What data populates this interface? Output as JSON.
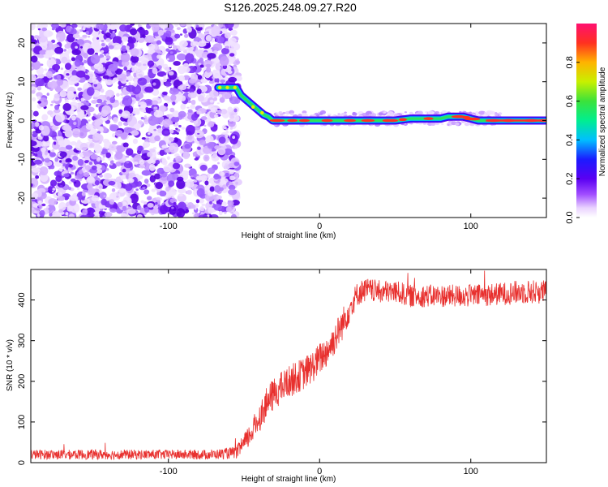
{
  "title": "S126.2025.248.09.27.R20",
  "chart_data": [
    {
      "type": "heatmap",
      "xlabel": "Height of straight line (km)",
      "ylabel": "Frequency (Hz)",
      "xlim": [
        -191,
        150
      ],
      "ylim": [
        -25,
        25
      ],
      "xticks": [
        -100,
        0,
        100
      ],
      "yticks": [
        -20,
        -10,
        0,
        10,
        20
      ],
      "xtick_labels": [
        "-100",
        "0",
        "100"
      ],
      "ytick_labels": [
        "-20",
        "-10",
        "0",
        "10",
        "20"
      ],
      "noise_region_x": [
        -191,
        -57
      ],
      "ridge": {
        "x": [
          -67,
          -62,
          -58,
          -55,
          -52,
          -49,
          -46,
          -43,
          -40,
          -37,
          -34,
          -31,
          -28,
          -25,
          0,
          50,
          60,
          70,
          80,
          85,
          90,
          95,
          100,
          105,
          110,
          150
        ],
        "frequency": [
          8.5,
          8.5,
          8.5,
          8.5,
          6.5,
          5.5,
          4.5,
          3.5,
          2.5,
          1.5,
          1.0,
          0.0,
          0.0,
          0.0,
          0.0,
          0.0,
          0.5,
          0.5,
          0.5,
          1.0,
          1.0,
          1.0,
          0.5,
          0.0,
          0.0,
          0.0
        ]
      },
      "colorbar": {
        "label": "Normalized spectral amplitude",
        "range": [
          0,
          1
        ],
        "ticks": [
          0.0,
          0.2,
          0.4,
          0.6,
          0.8
        ],
        "tick_labels": [
          "0.0",
          "0.2",
          "0.4",
          "0.6",
          "0.8"
        ]
      }
    },
    {
      "type": "line",
      "xlabel": "Height of straight line (km)",
      "ylabel": "SNR (10 * v/v)",
      "xlim": [
        -191,
        150
      ],
      "ylim": [
        0,
        475
      ],
      "xticks": [
        -100,
        0,
        100
      ],
      "yticks": [
        0,
        100,
        200,
        300,
        400
      ],
      "xtick_labels": [
        "-100",
        "0",
        "100"
      ],
      "ytick_labels": [
        "0",
        "100",
        "200",
        "300",
        "400"
      ],
      "color": "#e8302e",
      "series": [
        {
          "name": "SNR",
          "x": [
            -191,
            -150,
            -100,
            -70,
            -55,
            -50,
            -45,
            -40,
            -35,
            -30,
            -25,
            -20,
            -15,
            -10,
            -5,
            0,
            5,
            10,
            15,
            20,
            25,
            30,
            40,
            50,
            60,
            80,
            100,
            120,
            135,
            150
          ],
          "y": [
            20,
            20,
            20,
            20,
            25,
            45,
            75,
            110,
            145,
            170,
            185,
            200,
            210,
            220,
            235,
            255,
            275,
            305,
            340,
            380,
            415,
            425,
            420,
            420,
            410,
            410,
            410,
            415,
            420,
            420
          ],
          "noise_amplitude": [
            12,
            12,
            12,
            12,
            15,
            25,
            30,
            35,
            40,
            40,
            40,
            40,
            40,
            40,
            40,
            40,
            40,
            40,
            40,
            35,
            30,
            30,
            28,
            28,
            28,
            28,
            28,
            28,
            30,
            30
          ]
        }
      ]
    }
  ]
}
